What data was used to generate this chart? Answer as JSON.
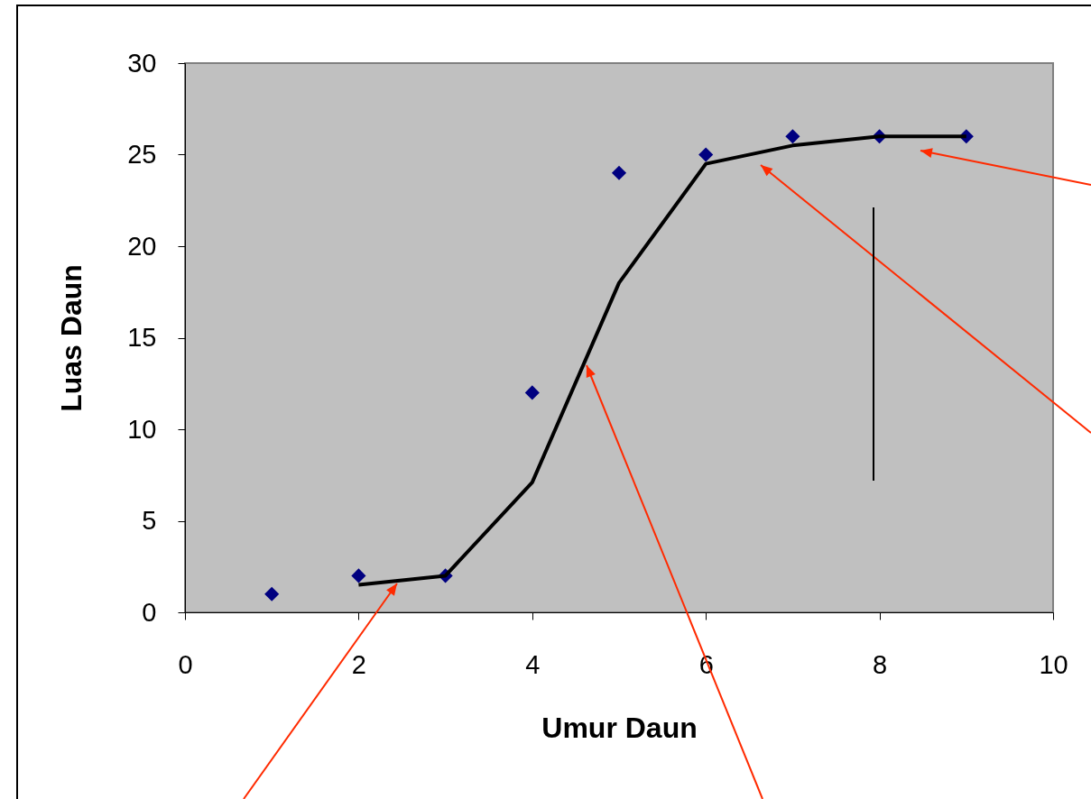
{
  "chart_data": {
    "type": "scatter",
    "xlabel": "Umur Daun",
    "ylabel": "Luas Daun",
    "xlim": [
      0,
      10
    ],
    "ylim": [
      0,
      30
    ],
    "xticks": [
      0,
      2,
      4,
      6,
      8,
      10
    ],
    "yticks": [
      0,
      5,
      10,
      15,
      20,
      25,
      30
    ],
    "grid": false,
    "series": [
      {
        "color": "#000080",
        "marker": "diamond",
        "x": [
          1,
          2,
          3,
          4,
          5,
          6,
          7,
          8,
          9
        ],
        "values": [
          1,
          2,
          2,
          12,
          24,
          25,
          26,
          26,
          26
        ]
      },
      {
        "type": "line",
        "color": "#000000",
        "marker": "none",
        "line_style": "solid",
        "x": [
          2,
          3,
          4,
          5,
          6,
          7,
          8,
          9
        ],
        "values": [
          1.5,
          2,
          7.1,
          18,
          24.5,
          25.5,
          26,
          26
        ]
      }
    ]
  }
}
